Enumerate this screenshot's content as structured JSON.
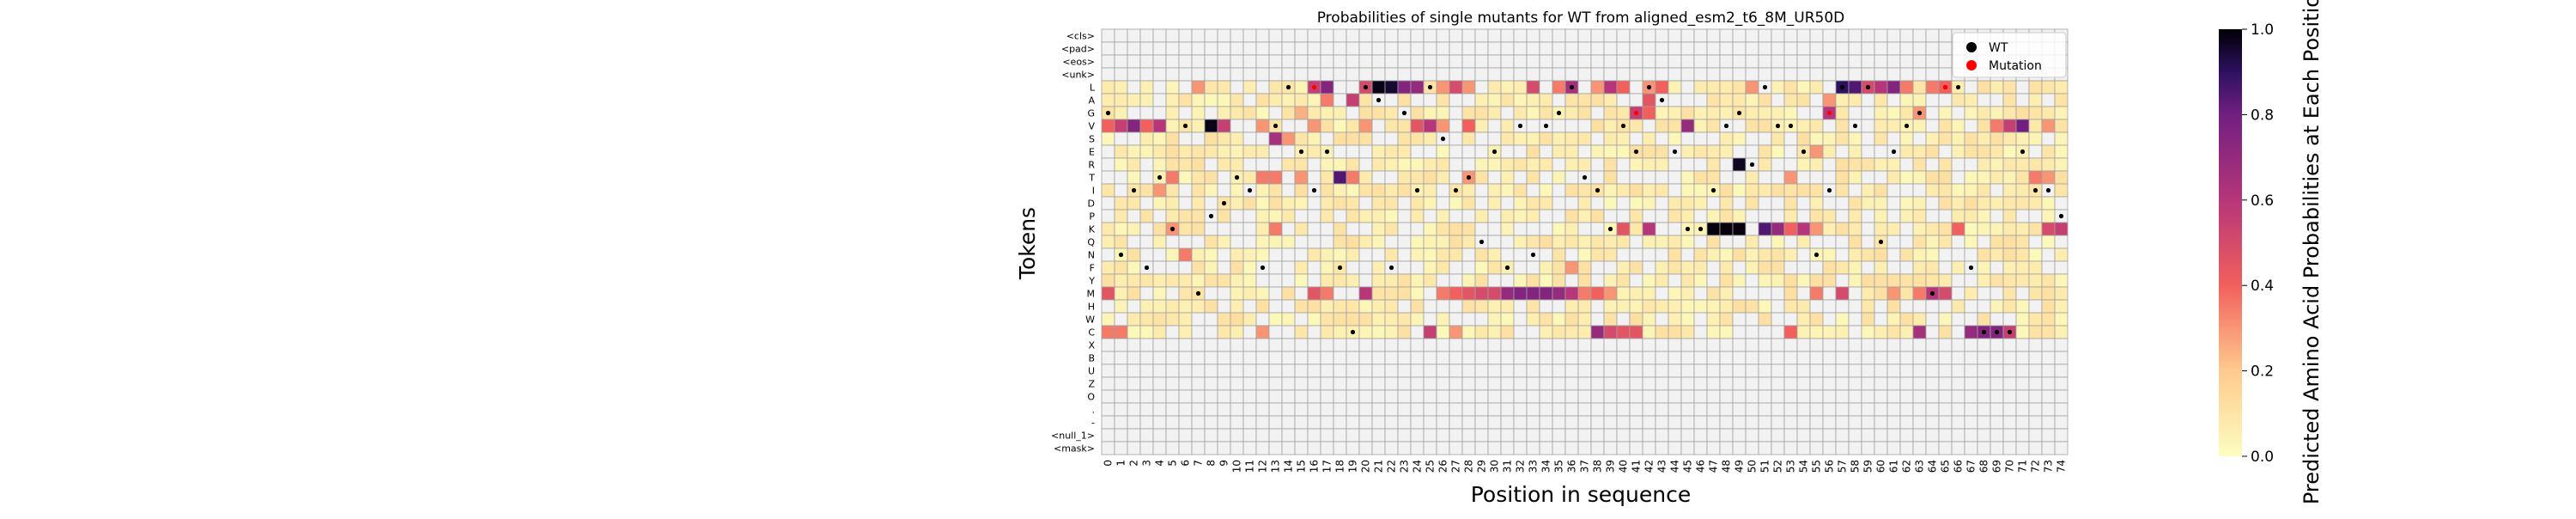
{
  "chart_data": {
    "type": "heatmap",
    "title": "Probabilities of single mutants for WT from aligned_esm2_t6_8M_UR50D",
    "xlabel": "Position in sequence",
    "ylabel": "Tokens",
    "tokens": [
      "<cls>",
      "<pad>",
      "<eos>",
      "<unk>",
      "L",
      "A",
      "G",
      "V",
      "S",
      "E",
      "R",
      "T",
      "I",
      "D",
      "P",
      "K",
      "Q",
      "N",
      "F",
      "Y",
      "M",
      "H",
      "W",
      "C",
      "X",
      "B",
      "U",
      "Z",
      "O",
      ".",
      "-",
      "<null_1>",
      "<mask>"
    ],
    "positions": [
      0,
      1,
      2,
      3,
      4,
      5,
      6,
      7,
      8,
      9,
      10,
      11,
      12,
      13,
      14,
      15,
      16,
      17,
      18,
      19,
      20,
      21,
      22,
      23,
      24,
      25,
      26,
      27,
      28,
      29,
      30,
      31,
      32,
      33,
      34,
      35,
      36,
      37,
      38,
      39,
      40,
      41,
      42,
      43,
      44,
      45,
      46,
      47,
      48,
      49,
      50,
      51,
      52,
      53,
      54,
      55,
      56,
      57,
      58,
      59,
      60,
      61,
      62,
      63,
      64,
      65,
      66,
      67,
      68,
      69,
      70,
      71,
      72,
      73,
      74
    ],
    "wt_sequence": "GNIFTKVMPDTIFVLEIEFCLAFGILSITQEFVNVGLTIKVELAEKKIVGRLVVENILVLQEVGMLLFCCCEIIP",
    "cells": [
      {
        "token": "L",
        "pos": 7,
        "value": 0.3
      },
      {
        "token": "L",
        "pos": 16,
        "value": 0.55
      },
      {
        "token": "L",
        "pos": 17,
        "value": 0.75
      },
      {
        "token": "L",
        "pos": 20,
        "value": 0.5
      },
      {
        "token": "L",
        "pos": 21,
        "value": 0.98
      },
      {
        "token": "L",
        "pos": 22,
        "value": 0.95
      },
      {
        "token": "L",
        "pos": 23,
        "value": 0.75
      },
      {
        "token": "L",
        "pos": 24,
        "value": 0.7
      },
      {
        "token": "L",
        "pos": 26,
        "value": 0.3
      },
      {
        "token": "L",
        "pos": 27,
        "value": 0.5
      },
      {
        "token": "L",
        "pos": 28,
        "value": 0.3
      },
      {
        "token": "L",
        "pos": 33,
        "value": 0.5
      },
      {
        "token": "L",
        "pos": 35,
        "value": 0.35
      },
      {
        "token": "L",
        "pos": 36,
        "value": 0.65
      },
      {
        "token": "L",
        "pos": 38,
        "value": 0.3
      },
      {
        "token": "L",
        "pos": 39,
        "value": 0.6
      },
      {
        "token": "L",
        "pos": 40,
        "value": 0.4
      },
      {
        "token": "L",
        "pos": 42,
        "value": 0.3
      },
      {
        "token": "L",
        "pos": 43,
        "value": 0.4
      },
      {
        "token": "L",
        "pos": 50,
        "value": 0.3
      },
      {
        "token": "L",
        "pos": 57,
        "value": 0.9
      },
      {
        "token": "L",
        "pos": 58,
        "value": 0.85
      },
      {
        "token": "L",
        "pos": 59,
        "value": 0.5
      },
      {
        "token": "L",
        "pos": 60,
        "value": 0.6
      },
      {
        "token": "L",
        "pos": 61,
        "value": 0.75
      },
      {
        "token": "L",
        "pos": 62,
        "value": 0.35
      },
      {
        "token": "L",
        "pos": 64,
        "value": 0.35
      },
      {
        "token": "L",
        "pos": 65,
        "value": 0.4
      },
      {
        "token": "A",
        "pos": 17,
        "value": 0.35
      },
      {
        "token": "A",
        "pos": 19,
        "value": 0.55
      },
      {
        "token": "A",
        "pos": 42,
        "value": 0.45
      },
      {
        "token": "A",
        "pos": 56,
        "value": 0.3
      },
      {
        "token": "G",
        "pos": 15,
        "value": 0.25
      },
      {
        "token": "G",
        "pos": 41,
        "value": 0.55
      },
      {
        "token": "G",
        "pos": 42,
        "value": 0.4
      },
      {
        "token": "G",
        "pos": 56,
        "value": 0.6
      },
      {
        "token": "G",
        "pos": 63,
        "value": 0.3
      },
      {
        "token": "V",
        "pos": 0,
        "value": 0.4
      },
      {
        "token": "V",
        "pos": 1,
        "value": 0.55
      },
      {
        "token": "V",
        "pos": 2,
        "value": 0.75
      },
      {
        "token": "V",
        "pos": 3,
        "value": 0.4
      },
      {
        "token": "V",
        "pos": 4,
        "value": 0.6
      },
      {
        "token": "V",
        "pos": 8,
        "value": 0.98
      },
      {
        "token": "V",
        "pos": 9,
        "value": 0.55
      },
      {
        "token": "V",
        "pos": 12,
        "value": 0.3
      },
      {
        "token": "V",
        "pos": 16,
        "value": 0.3
      },
      {
        "token": "V",
        "pos": 20,
        "value": 0.3
      },
      {
        "token": "V",
        "pos": 24,
        "value": 0.45
      },
      {
        "token": "V",
        "pos": 25,
        "value": 0.6
      },
      {
        "token": "V",
        "pos": 26,
        "value": 0.3
      },
      {
        "token": "V",
        "pos": 28,
        "value": 0.4
      },
      {
        "token": "V",
        "pos": 45,
        "value": 0.7
      },
      {
        "token": "V",
        "pos": 69,
        "value": 0.35
      },
      {
        "token": "V",
        "pos": 70,
        "value": 0.55
      },
      {
        "token": "V",
        "pos": 71,
        "value": 0.8
      },
      {
        "token": "V",
        "pos": 73,
        "value": 0.3
      },
      {
        "token": "S",
        "pos": 13,
        "value": 0.65
      },
      {
        "token": "S",
        "pos": 14,
        "value": 0.3
      },
      {
        "token": "E",
        "pos": 55,
        "value": 0.3
      },
      {
        "token": "R",
        "pos": 49,
        "value": 0.97
      },
      {
        "token": "T",
        "pos": 5,
        "value": 0.35
      },
      {
        "token": "T",
        "pos": 12,
        "value": 0.35
      },
      {
        "token": "T",
        "pos": 13,
        "value": 0.35
      },
      {
        "token": "T",
        "pos": 15,
        "value": 0.3
      },
      {
        "token": "T",
        "pos": 18,
        "value": 0.85
      },
      {
        "token": "T",
        "pos": 19,
        "value": 0.35
      },
      {
        "token": "T",
        "pos": 28,
        "value": 0.3
      },
      {
        "token": "T",
        "pos": 53,
        "value": 0.3
      },
      {
        "token": "T",
        "pos": 72,
        "value": 0.35
      },
      {
        "token": "T",
        "pos": 73,
        "value": 0.3
      },
      {
        "token": "I",
        "pos": 4,
        "value": 0.3
      },
      {
        "token": "K",
        "pos": 5,
        "value": 0.3
      },
      {
        "token": "K",
        "pos": 13,
        "value": 0.35
      },
      {
        "token": "K",
        "pos": 40,
        "value": 0.45
      },
      {
        "token": "K",
        "pos": 42,
        "value": 0.6
      },
      {
        "token": "K",
        "pos": 47,
        "value": 0.99
      },
      {
        "token": "K",
        "pos": 48,
        "value": 0.99
      },
      {
        "token": "K",
        "pos": 49,
        "value": 0.99
      },
      {
        "token": "K",
        "pos": 51,
        "value": 0.85
      },
      {
        "token": "K",
        "pos": 52,
        "value": 0.7
      },
      {
        "token": "K",
        "pos": 53,
        "value": 0.4
      },
      {
        "token": "K",
        "pos": 54,
        "value": 0.6
      },
      {
        "token": "K",
        "pos": 55,
        "value": 0.3
      },
      {
        "token": "K",
        "pos": 66,
        "value": 0.4
      },
      {
        "token": "K",
        "pos": 73,
        "value": 0.5
      },
      {
        "token": "K",
        "pos": 74,
        "value": 0.55
      },
      {
        "token": "N",
        "pos": 6,
        "value": 0.35
      },
      {
        "token": "F",
        "pos": 36,
        "value": 0.3
      },
      {
        "token": "M",
        "pos": 0,
        "value": 0.45
      },
      {
        "token": "M",
        "pos": 16,
        "value": 0.45
      },
      {
        "token": "M",
        "pos": 17,
        "value": 0.35
      },
      {
        "token": "M",
        "pos": 20,
        "value": 0.6
      },
      {
        "token": "M",
        "pos": 26,
        "value": 0.35
      },
      {
        "token": "M",
        "pos": 27,
        "value": 0.4
      },
      {
        "token": "M",
        "pos": 28,
        "value": 0.45
      },
      {
        "token": "M",
        "pos": 29,
        "value": 0.5
      },
      {
        "token": "M",
        "pos": 30,
        "value": 0.5
      },
      {
        "token": "M",
        "pos": 31,
        "value": 0.7
      },
      {
        "token": "M",
        "pos": 32,
        "value": 0.75
      },
      {
        "token": "M",
        "pos": 33,
        "value": 0.75
      },
      {
        "token": "M",
        "pos": 34,
        "value": 0.75
      },
      {
        "token": "M",
        "pos": 35,
        "value": 0.7
      },
      {
        "token": "M",
        "pos": 36,
        "value": 0.6
      },
      {
        "token": "M",
        "pos": 37,
        "value": 0.35
      },
      {
        "token": "M",
        "pos": 38,
        "value": 0.4
      },
      {
        "token": "M",
        "pos": 39,
        "value": 0.3
      },
      {
        "token": "M",
        "pos": 55,
        "value": 0.35
      },
      {
        "token": "M",
        "pos": 57,
        "value": 0.5
      },
      {
        "token": "M",
        "pos": 61,
        "value": 0.3
      },
      {
        "token": "M",
        "pos": 63,
        "value": 0.35
      },
      {
        "token": "M",
        "pos": 64,
        "value": 0.6
      },
      {
        "token": "M",
        "pos": 65,
        "value": 0.5
      },
      {
        "token": "C",
        "pos": 0,
        "value": 0.35
      },
      {
        "token": "C",
        "pos": 1,
        "value": 0.35
      },
      {
        "token": "C",
        "pos": 12,
        "value": 0.3
      },
      {
        "token": "C",
        "pos": 25,
        "value": 0.55
      },
      {
        "token": "C",
        "pos": 27,
        "value": 0.3
      },
      {
        "token": "C",
        "pos": 38,
        "value": 0.7
      },
      {
        "token": "C",
        "pos": 39,
        "value": 0.5
      },
      {
        "token": "C",
        "pos": 40,
        "value": 0.45
      },
      {
        "token": "C",
        "pos": 41,
        "value": 0.45
      },
      {
        "token": "C",
        "pos": 53,
        "value": 0.4
      },
      {
        "token": "C",
        "pos": 63,
        "value": 0.65
      },
      {
        "token": "C",
        "pos": 67,
        "value": 0.7
      },
      {
        "token": "C",
        "pos": 68,
        "value": 0.75
      },
      {
        "token": "C",
        "pos": 69,
        "value": 0.75
      },
      {
        "token": "C",
        "pos": 70,
        "value": 0.55
      }
    ],
    "mutation_markers": [
      {
        "token": "L",
        "pos": 16
      },
      {
        "token": "G",
        "pos": 41
      },
      {
        "token": "G",
        "pos": 56
      },
      {
        "token": "L",
        "pos": 65
      }
    ],
    "colorbar": {
      "label": "Predicted Amino Acid Probabilities at Each Position",
      "ticks": [
        "0.0",
        "0.2",
        "0.4",
        "0.6",
        "0.8",
        "1.0"
      ],
      "range": [
        0,
        1
      ],
      "colormap": "magma_r"
    },
    "legend": {
      "position": "top-right",
      "entries": [
        {
          "label": "WT",
          "color": "#000000"
        },
        {
          "label": "Mutation",
          "color": "#ff0000"
        }
      ]
    },
    "colors": {
      "empty_cell": "#f2f2f2",
      "grid": "#a0a0a0",
      "low": "#fcfdbf",
      "high": "#000004"
    }
  }
}
